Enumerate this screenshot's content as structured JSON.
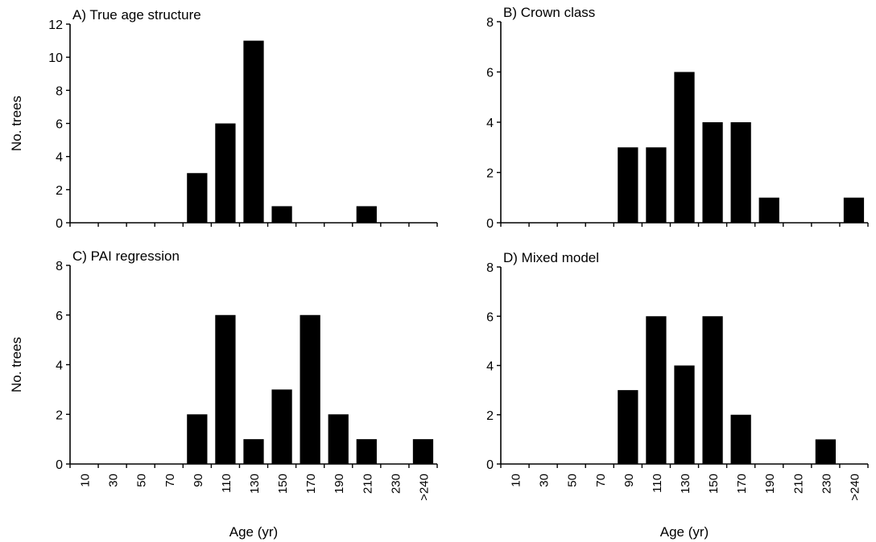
{
  "chart_data": [
    {
      "type": "bar",
      "title": "A) True age structure",
      "ylabel": "No. trees",
      "xlabel": "",
      "ylim": [
        0,
        12
      ],
      "yticks": [
        "0",
        "2",
        "4",
        "6",
        "8",
        "10",
        "12"
      ],
      "categories": [
        "10",
        "30",
        "50",
        "70",
        "90",
        "110",
        "130",
        "150",
        "170",
        "190",
        "210",
        "230",
        ">240"
      ],
      "values": [
        0,
        0,
        0,
        0,
        3,
        6,
        11,
        1,
        0,
        0,
        1,
        0,
        0
      ]
    },
    {
      "type": "bar",
      "title": "B) Crown class",
      "ylabel": "",
      "xlabel": "",
      "ylim": [
        0,
        8
      ],
      "yticks": [
        "0",
        "2",
        "4",
        "6",
        "8"
      ],
      "categories": [
        "10",
        "30",
        "50",
        "70",
        "90",
        "110",
        "130",
        "150",
        "170",
        "190",
        "210",
        "230",
        ">240"
      ],
      "values": [
        0,
        0,
        0,
        0,
        3,
        3,
        6,
        4,
        4,
        1,
        0,
        0,
        1
      ]
    },
    {
      "type": "bar",
      "title": "C) PAI regression",
      "ylabel": "No. trees",
      "xlabel": "Age (yr)",
      "ylim": [
        0,
        8
      ],
      "yticks": [
        "0",
        "2",
        "4",
        "6",
        "8"
      ],
      "categories": [
        "10",
        "30",
        "50",
        "70",
        "90",
        "110",
        "130",
        "150",
        "170",
        "190",
        "210",
        "230",
        ">240"
      ],
      "values": [
        0,
        0,
        0,
        0,
        2,
        6,
        1,
        3,
        6,
        2,
        1,
        0,
        1
      ]
    },
    {
      "type": "bar",
      "title": "D) Mixed model",
      "ylabel": "",
      "xlabel": "Age (yr)",
      "ylim": [
        0,
        8
      ],
      "yticks": [
        "0",
        "2",
        "4",
        "6",
        "8"
      ],
      "categories": [
        "10",
        "30",
        "50",
        "70",
        "90",
        "110",
        "130",
        "150",
        "170",
        "190",
        "210",
        "230",
        ">240"
      ],
      "values": [
        0,
        0,
        0,
        0,
        3,
        6,
        4,
        6,
        2,
        0,
        0,
        1,
        0
      ]
    }
  ],
  "colors": {
    "bar": "#000000",
    "axis": "#000000",
    "background": "#ffffff"
  }
}
